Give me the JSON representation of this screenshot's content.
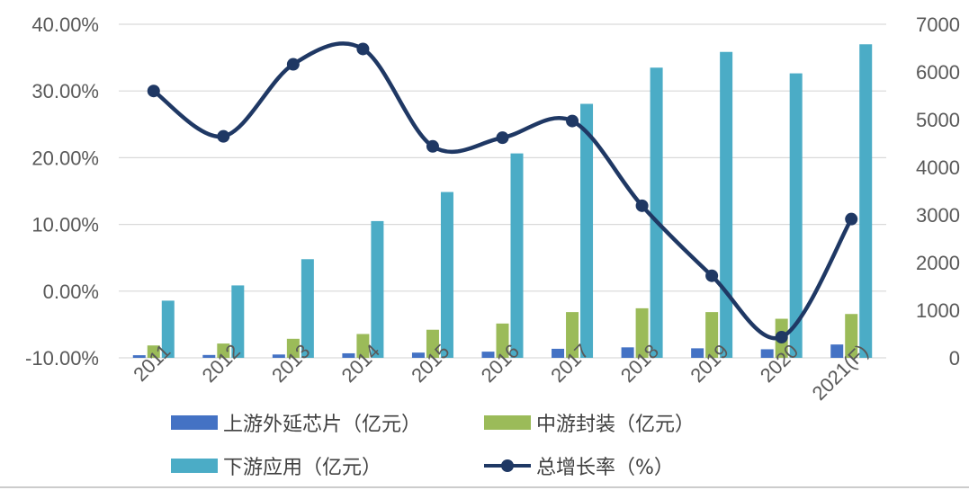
{
  "chart_data": {
    "type": "bar",
    "categories": [
      "2011",
      "2012",
      "2013",
      "2014",
      "2015",
      "2016",
      "2017",
      "2018",
      "2019",
      "2020",
      "2021(F)"
    ],
    "series": [
      {
        "name": "上游外延芯片（亿元）",
        "type": "bar",
        "axis": "right",
        "color": "#4472C4",
        "values": [
          55,
          60,
          70,
          95,
          110,
          130,
          190,
          220,
          200,
          180,
          280
        ]
      },
      {
        "name": "中游封装（亿元）",
        "type": "bar",
        "axis": "right",
        "color": "#9BBB59",
        "values": [
          260,
          300,
          400,
          500,
          590,
          720,
          960,
          1040,
          960,
          820,
          920
        ]
      },
      {
        "name": "下游应用（亿元）",
        "type": "bar",
        "axis": "right",
        "color": "#4BACC6",
        "values": [
          1200,
          1520,
          2070,
          2870,
          3480,
          4290,
          5330,
          6090,
          6420,
          5970,
          6580
        ]
      },
      {
        "name": "总增长率（%）",
        "type": "line",
        "axis": "left",
        "color": "#1F3864",
        "values": [
          30.0,
          23.2,
          34.0,
          36.3,
          21.7,
          23.0,
          25.5,
          12.8,
          2.3,
          -6.9,
          10.8
        ]
      }
    ],
    "left_axis": {
      "min": -10,
      "max": 40,
      "ticks": [
        "-10.00%",
        "0.00%",
        "10.00%",
        "20.00%",
        "30.00%",
        "40.00%"
      ]
    },
    "right_axis": {
      "min": 0,
      "max": 7000,
      "ticks": [
        "0",
        "1000",
        "2000",
        "3000",
        "4000",
        "5000",
        "6000",
        "7000"
      ]
    },
    "grid": true,
    "legend_position": "bottom",
    "title": "",
    "xlabel": "",
    "ylabel": ""
  },
  "colors": {
    "grid": "#d9d9d9",
    "tick_text": "#595959",
    "upstream": "#4472C4",
    "midstream": "#9BBB59",
    "downstream": "#4BACC6",
    "growth": "#1F3864"
  }
}
